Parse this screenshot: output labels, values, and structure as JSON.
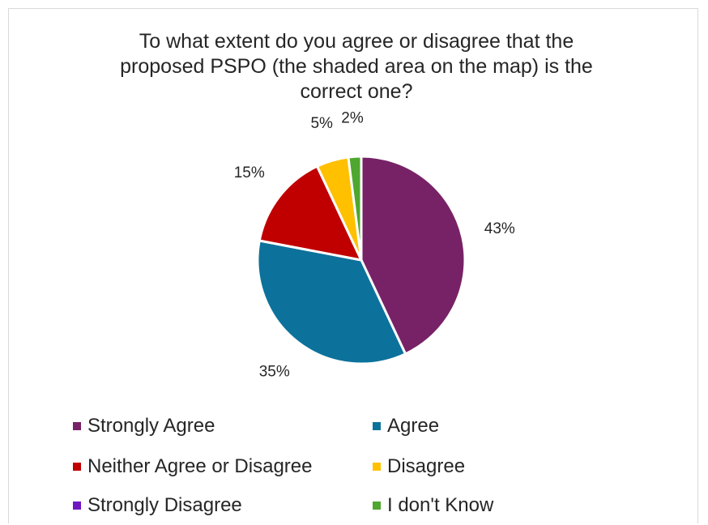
{
  "chart_data": {
    "type": "pie",
    "title_lines": [
      "To what extent do you agree or disagree that the",
      "proposed PSPO (the shaded area on the map) is the",
      "correct one?"
    ],
    "slices": [
      {
        "name": "Strongly Agree",
        "value": 43,
        "label": "43%",
        "color": "#772266"
      },
      {
        "name": "Agree",
        "value": 35,
        "label": "35%",
        "color": "#0c729b"
      },
      {
        "name": "Neither Agree or Disagree",
        "value": 15,
        "label": "15%",
        "color": "#c00000"
      },
      {
        "name": "Disagree",
        "value": 5,
        "label": "5%",
        "color": "#ffc000"
      },
      {
        "name": "Strongly Disagree",
        "value": 0,
        "label": "",
        "color": "#7018c0"
      },
      {
        "name": "I don't Know",
        "value": 2,
        "label": "2%",
        "color": "#4ea72e"
      }
    ],
    "legend_placement": "bottom"
  }
}
